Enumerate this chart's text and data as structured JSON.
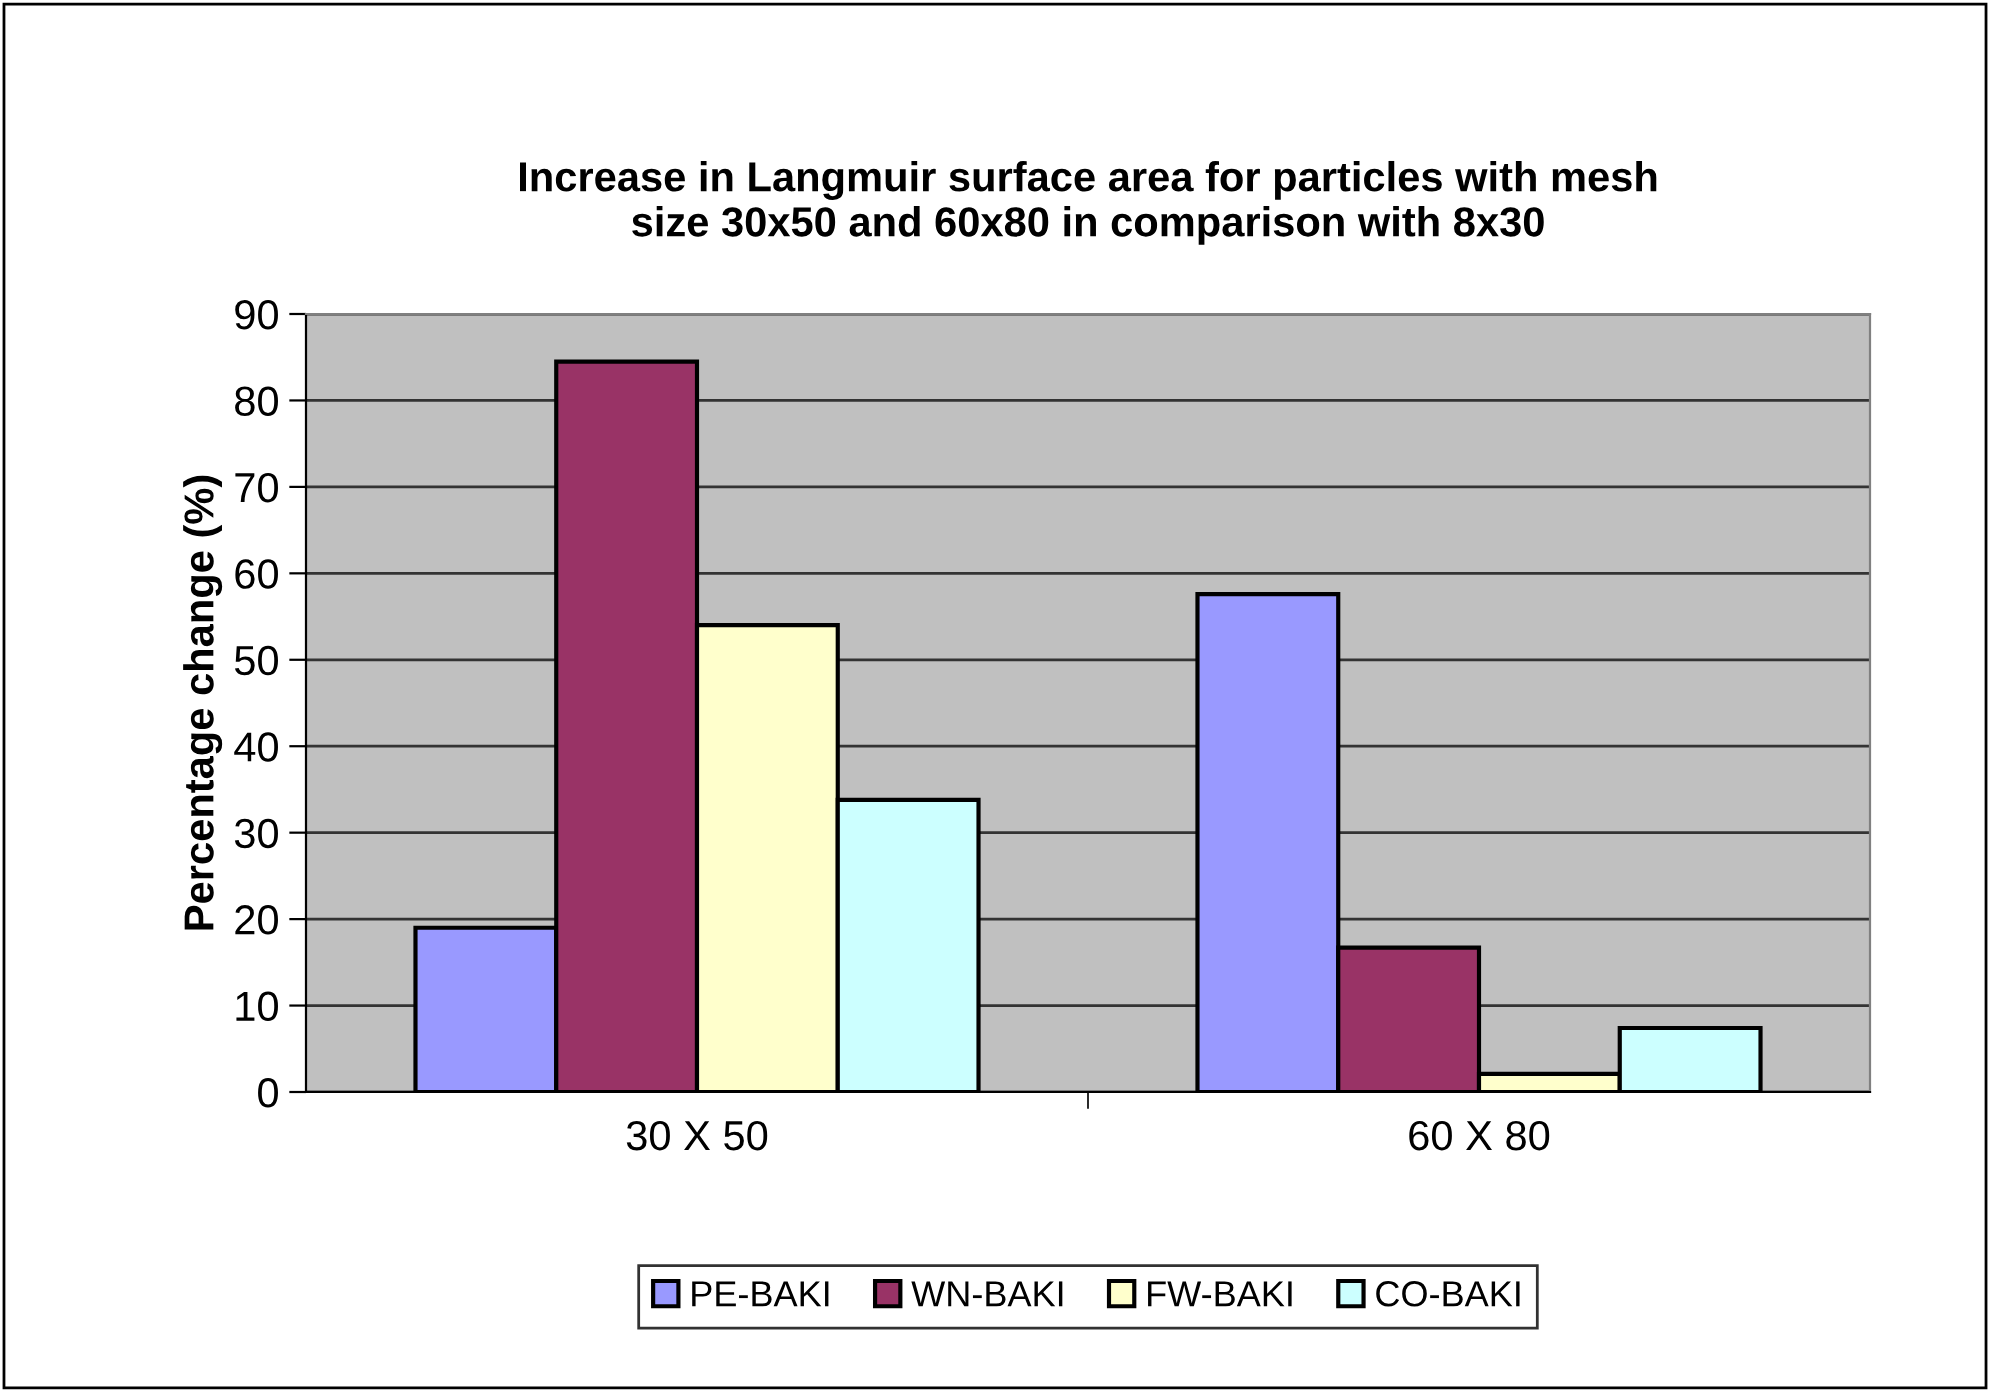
{
  "chart_data": {
    "type": "bar",
    "title": "Increase in Langmuir surface area for particles with mesh\nsize 30x50 and 60x80 in comparison with 8x30",
    "ylabel": "Percentage change (%)",
    "categories": [
      "30 X 50",
      "60 X 80"
    ],
    "series": [
      {
        "name": "PE-BAKI",
        "color": "#9999ff",
        "values": [
          19,
          57.6
        ]
      },
      {
        "name": "WN-BAKI",
        "color": "#993366",
        "values": [
          84.5,
          16.7
        ]
      },
      {
        "name": "FW-BAKI",
        "color": "#ffffcc",
        "values": [
          54,
          2.1
        ]
      },
      {
        "name": "CO-BAKI",
        "color": "#ccffff",
        "values": [
          33.8,
          7.4
        ]
      }
    ],
    "ylim": [
      0,
      90
    ],
    "yticks": [
      0,
      10,
      20,
      30,
      40,
      50,
      60,
      70,
      80,
      90
    ],
    "grid": "y",
    "legend": "bottom"
  }
}
